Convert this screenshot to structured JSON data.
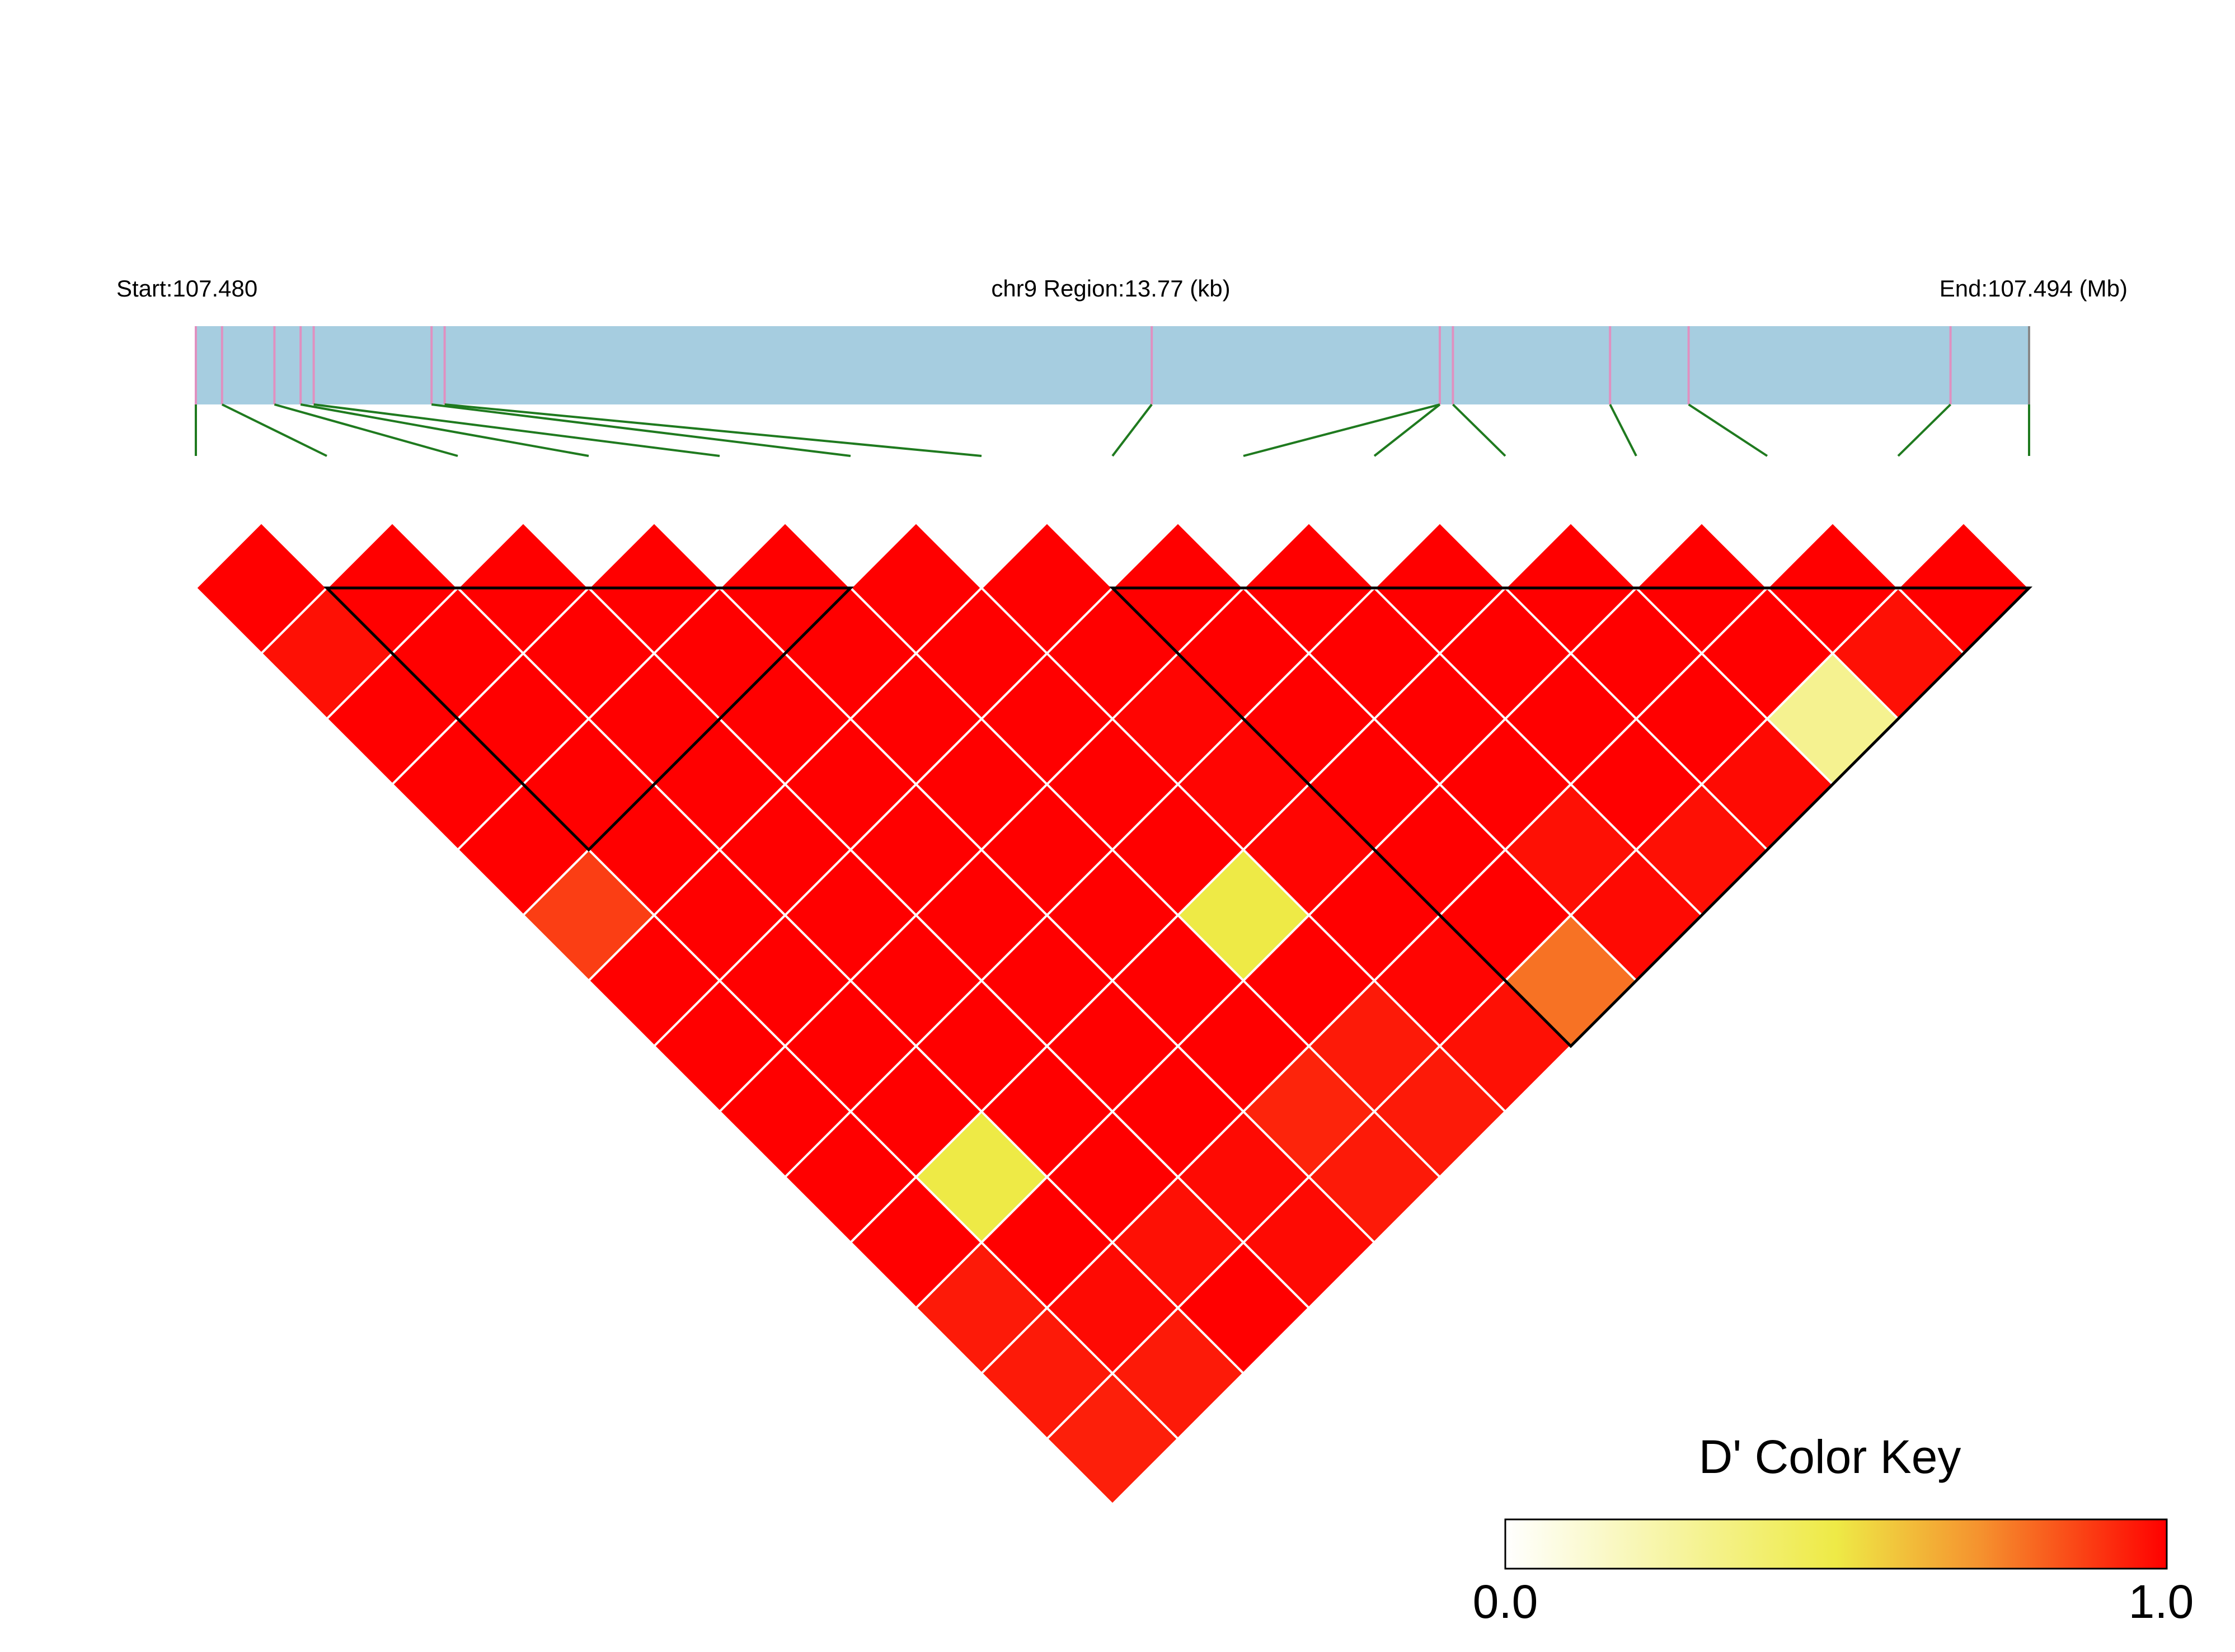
{
  "header": {
    "start_label": "Start:107.480",
    "region_label": "chr9 Region:13.77 (kb)",
    "end_label": "End:107.494 (Mb)"
  },
  "colors": {
    "track_fill": "#a6cde0",
    "snp_tick": "#e090c0",
    "end_tick": "#888888",
    "connector": "#1f7a1f",
    "block_outline": "#000000",
    "cell_border": "#ffffff"
  },
  "chart_data": {
    "type": "heatmap",
    "title": "",
    "region": {
      "chromosome": "chr9",
      "start_mb": 107.48,
      "end_mb": 107.494,
      "length_kb": 13.77
    },
    "n_markers": 15,
    "snp_positions_mb": [
      107.48,
      107.4802,
      107.4806,
      107.4808,
      107.4809,
      107.4818,
      107.4819,
      107.4873,
      107.4895,
      107.4895,
      107.4896,
      107.4908,
      107.4914,
      107.4934,
      107.494
    ],
    "dprime_rows": [
      [
        1.0,
        1.0,
        1.0,
        1.0,
        1.0,
        1.0,
        1.0,
        1.0,
        1.0,
        1.0,
        1.0,
        1.0,
        1.0,
        1.0
      ],
      [
        0.97,
        1.0,
        1.0,
        1.0,
        1.0,
        1.0,
        1.0,
        1.0,
        1.0,
        1.0,
        1.0,
        1.0,
        0.97
      ],
      [
        1.0,
        1.0,
        1.0,
        1.0,
        1.0,
        1.0,
        0.99,
        1.0,
        1.0,
        1.0,
        1.0,
        0.3
      ],
      [
        1.0,
        1.0,
        1.0,
        1.0,
        1.0,
        1.0,
        0.99,
        1.0,
        1.0,
        1.0,
        0.98
      ],
      [
        1.0,
        1.0,
        1.0,
        1.0,
        1.0,
        1.0,
        0.99,
        1.0,
        0.97,
        0.97
      ],
      [
        0.88,
        1.0,
        1.0,
        1.0,
        1.0,
        0.5,
        1.0,
        1.0,
        0.98
      ],
      [
        1.0,
        1.0,
        1.0,
        1.0,
        1.0,
        1.0,
        0.99,
        0.78
      ],
      [
        1.0,
        1.0,
        1.0,
        1.0,
        1.0,
        0.95,
        0.97
      ],
      [
        1.0,
        1.0,
        1.0,
        1.0,
        0.93,
        0.95
      ],
      [
        1.0,
        0.5,
        1.0,
        0.98,
        0.95
      ],
      [
        1.0,
        1.0,
        0.97,
        0.98
      ],
      [
        0.95,
        0.98,
        1.0
      ],
      [
        0.95,
        0.95
      ],
      [
        0.94
      ]
    ],
    "ld_blocks": [
      {
        "first_marker": 1,
        "last_marker": 5
      },
      {
        "first_marker": 7,
        "last_marker": 14
      }
    ],
    "color_key": {
      "title": "D' Color Key",
      "min_label": "0.0",
      "max_label": "1.0",
      "stops": [
        {
          "offset": 0.0,
          "color": "#ffffff"
        },
        {
          "offset": 0.5,
          "color": "#eeea46"
        },
        {
          "offset": 0.72,
          "color": "#f5912e"
        },
        {
          "offset": 1.0,
          "color": "#ff0000"
        }
      ]
    }
  }
}
